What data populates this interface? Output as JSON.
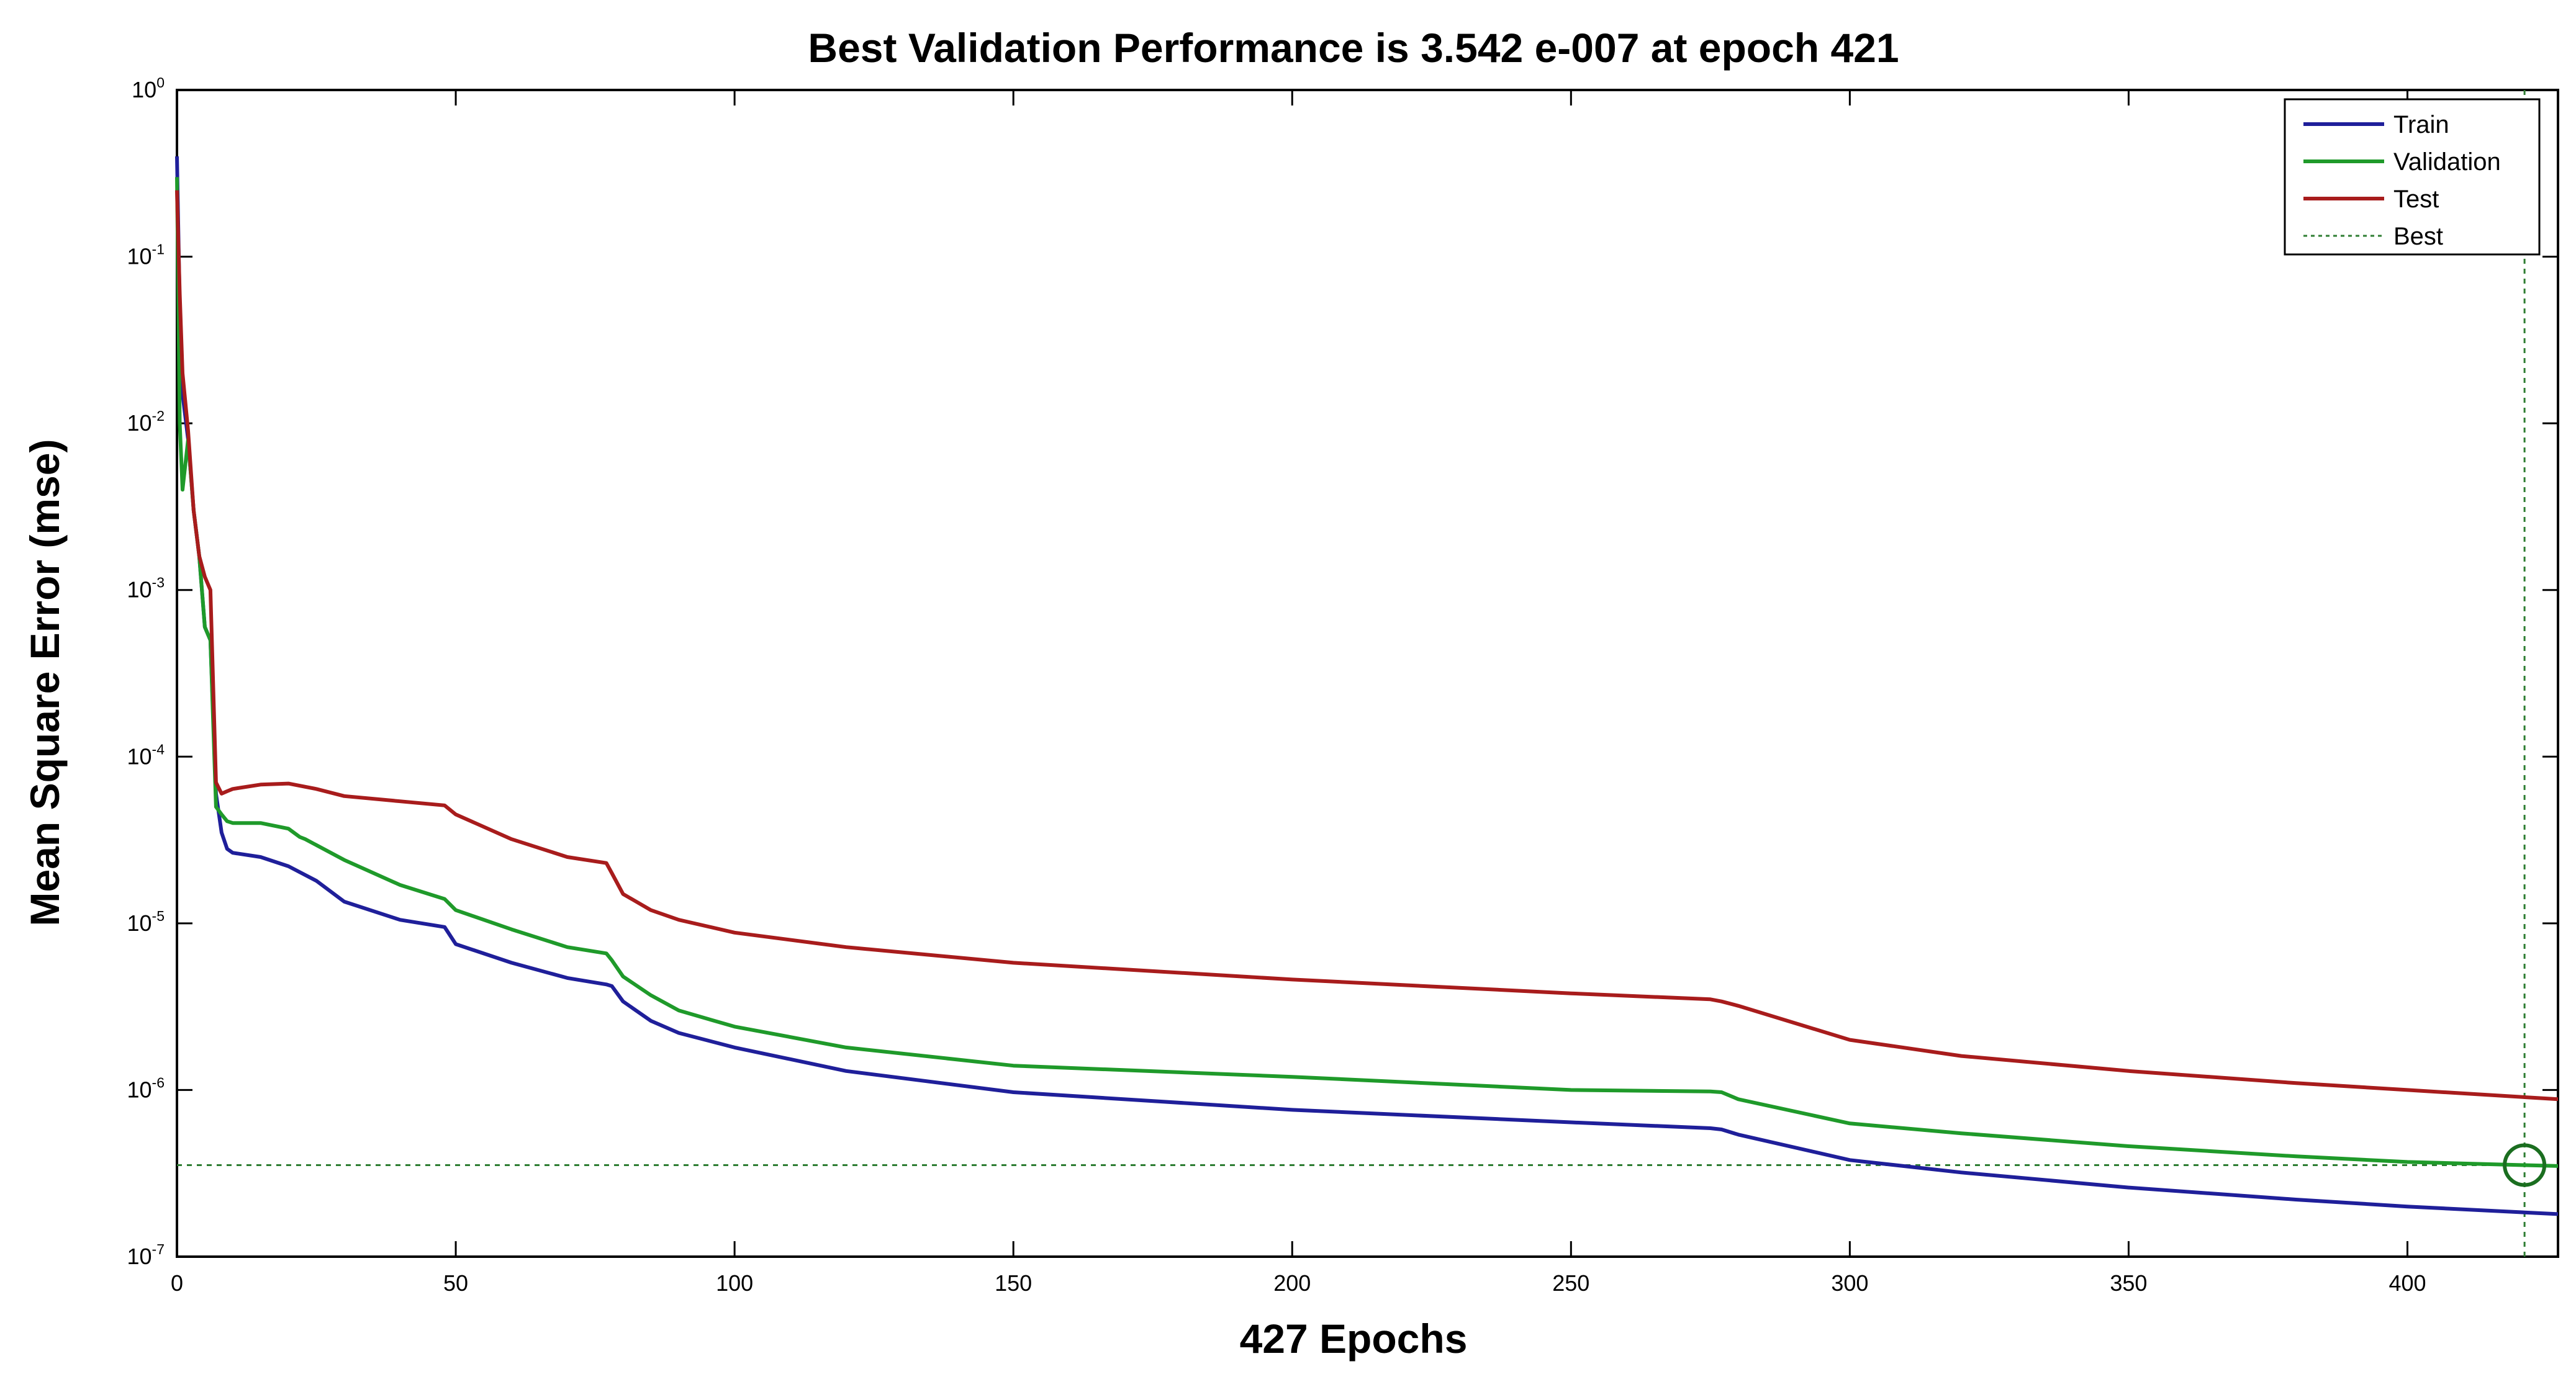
{
  "chart_data": {
    "type": "line",
    "title": "Best Validation Performance is 3.542 e-007 at epoch 421",
    "xlabel": "427 Epochs",
    "ylabel": "Mean Square Error (mse)",
    "xlim": [
      0,
      427
    ],
    "ylim": [
      1e-07,
      1
    ],
    "yscale": "log",
    "x_ticks": [
      0,
      50,
      100,
      150,
      200,
      250,
      300,
      350,
      400
    ],
    "y_ticks": [
      {
        "base": "10",
        "exp": "-7",
        "value": 1e-07
      },
      {
        "base": "10",
        "exp": "-6",
        "value": 1e-06
      },
      {
        "base": "10",
        "exp": "-5",
        "value": 1e-05
      },
      {
        "base": "10",
        "exp": "-4",
        "value": 0.0001
      },
      {
        "base": "10",
        "exp": "-3",
        "value": 0.001
      },
      {
        "base": "10",
        "exp": "-2",
        "value": 0.01
      },
      {
        "base": "10",
        "exp": "-1",
        "value": 0.1
      },
      {
        "base": "10",
        "exp": "0",
        "value": 1
      }
    ],
    "grid": false,
    "legend_position": "top-right",
    "best": {
      "epoch": 421,
      "value": 3.542e-07,
      "label": "Best"
    },
    "series": [
      {
        "name": "Train",
        "color": "#1f1f9a",
        "x": [
          0,
          0.5,
          1,
          2,
          3,
          4,
          5,
          6,
          7,
          8,
          9,
          10,
          15,
          20,
          25,
          30,
          40,
          48,
          50,
          60,
          70,
          77,
          78,
          80,
          85,
          90,
          100,
          120,
          150,
          200,
          250,
          275,
          277,
          280,
          300,
          320,
          350,
          380,
          400,
          427
        ],
        "y": [
          0.4,
          0.05,
          0.015,
          0.008,
          0.003,
          0.0016,
          0.0006,
          0.0005,
          6e-05,
          3.5e-05,
          2.8e-05,
          2.65e-05,
          2.5e-05,
          2.2e-05,
          1.8e-05,
          1.35e-05,
          1.05e-05,
          9.5e-06,
          7.5e-06,
          5.8e-06,
          4.7e-06,
          4.3e-06,
          4.2e-06,
          3.4e-06,
          2.6e-06,
          2.2e-06,
          1.8e-06,
          1.3e-06,
          9.7e-07,
          7.6e-07,
          6.4e-07,
          5.9e-07,
          5.8e-07,
          5.4e-07,
          3.8e-07,
          3.2e-07,
          2.6e-07,
          2.2e-07,
          2e-07,
          1.8e-07
        ]
      },
      {
        "name": "Validation",
        "color": "#1f9a2a",
        "x": [
          0,
          0.5,
          1,
          2,
          3,
          4,
          5,
          6,
          7,
          8,
          9,
          10,
          15,
          20,
          22,
          23,
          30,
          40,
          48,
          50,
          60,
          70,
          77,
          78,
          80,
          85,
          90,
          100,
          120,
          150,
          200,
          250,
          275,
          277,
          280,
          300,
          320,
          350,
          380,
          400,
          421,
          427
        ],
        "y": [
          0.3,
          0.01,
          0.004,
          0.008,
          0.003,
          0.0016,
          0.0006,
          0.0005,
          5e-05,
          4.5e-05,
          4.1e-05,
          4e-05,
          4e-05,
          3.7e-05,
          3.3e-05,
          3.2e-05,
          2.4e-05,
          1.7e-05,
          1.4e-05,
          1.2e-05,
          9.2e-06,
          7.2e-06,
          6.6e-06,
          6e-06,
          4.8e-06,
          3.7e-06,
          3e-06,
          2.4e-06,
          1.8e-06,
          1.4e-06,
          1.2e-06,
          1e-06,
          9.8e-07,
          9.7e-07,
          8.8e-07,
          6.3e-07,
          5.5e-07,
          4.6e-07,
          4e-07,
          3.7e-07,
          3.542e-07,
          3.5e-07
        ]
      },
      {
        "name": "Test",
        "color": "#a81c1c",
        "x": [
          0,
          0.5,
          1,
          2,
          3,
          4,
          5,
          6,
          7,
          8,
          9,
          10,
          15,
          20,
          25,
          30,
          40,
          48,
          50,
          60,
          70,
          77,
          78,
          80,
          85,
          90,
          100,
          120,
          150,
          200,
          250,
          275,
          277,
          280,
          300,
          320,
          350,
          380,
          400,
          427
        ],
        "y": [
          0.25,
          0.06,
          0.02,
          0.009,
          0.003,
          0.0016,
          0.0012,
          0.001,
          7e-05,
          6e-05,
          6.2e-05,
          6.4e-05,
          6.8e-05,
          6.9e-05,
          6.4e-05,
          5.8e-05,
          5.4e-05,
          5.1e-05,
          4.5e-05,
          3.2e-05,
          2.5e-05,
          2.3e-05,
          2e-05,
          1.5e-05,
          1.2e-05,
          1.05e-05,
          8.8e-06,
          7.2e-06,
          5.8e-06,
          4.6e-06,
          3.8e-06,
          3.5e-06,
          3.4e-06,
          3.2e-06,
          2e-06,
          1.6e-06,
          1.3e-06,
          1.1e-06,
          1e-06,
          8.8e-07
        ]
      }
    ]
  }
}
